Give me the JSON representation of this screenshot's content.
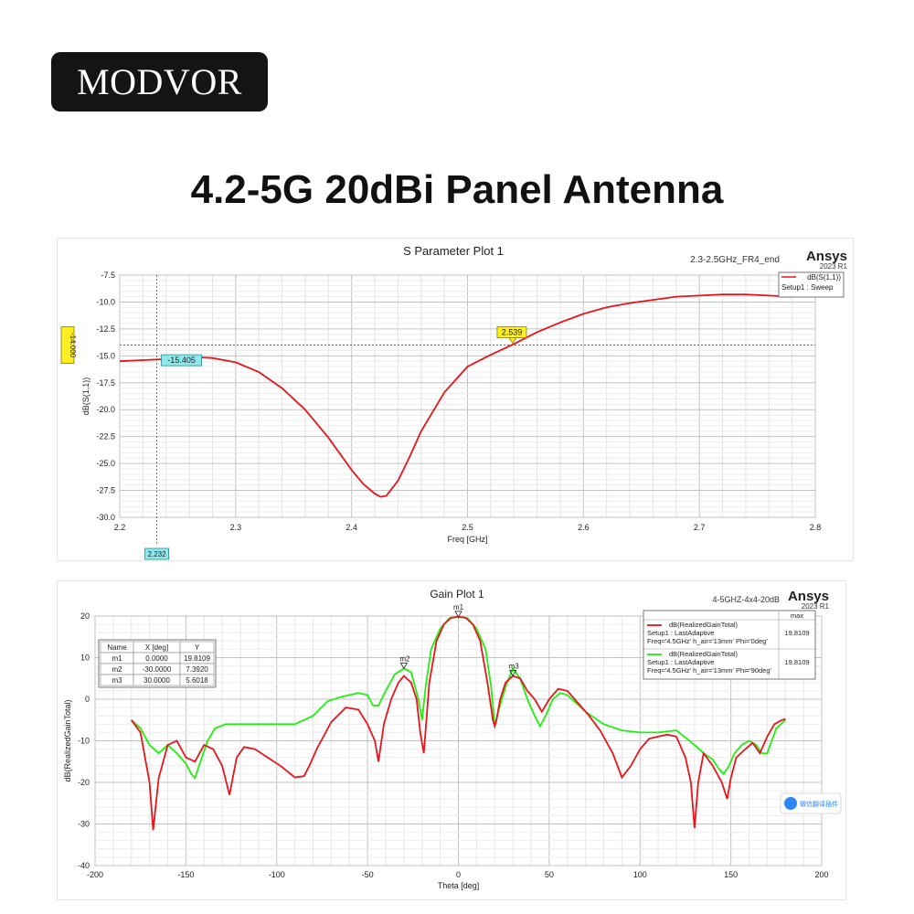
{
  "brand": {
    "logo_text": "MODVOR"
  },
  "page": {
    "title": "4.2-5G 20dBi Panel Antenna"
  },
  "chart_data": [
    {
      "type": "line",
      "title": "S Parameter Plot 1",
      "design_label": "2.3-2.5GHz_FR4_end",
      "vendor": "Ansys",
      "version": "2023 R1",
      "xlabel": "Freq [GHz]",
      "ylabel": "dB(S(1,1))",
      "xlim": [
        2.2,
        2.8
      ],
      "ylim": [
        -30.0,
        -7.5
      ],
      "x_ticks": [
        "2.2",
        "2.3",
        "2.4",
        "2.5",
        "2.6",
        "2.7",
        "2.8"
      ],
      "y_ticks": [
        "-7.5",
        "-10.0",
        "-12.5",
        "-15.0",
        "-17.5",
        "-20.0",
        "-22.5",
        "-25.0",
        "-27.5",
        "-30.0"
      ],
      "grid": true,
      "legend_position": "top-right",
      "series": [
        {
          "name": "dB(S(1,1))",
          "subtitle": "Setup1 : Sweep",
          "color": "#e8141b",
          "x": [
            2.2,
            2.22,
            2.24,
            2.26,
            2.28,
            2.3,
            2.32,
            2.34,
            2.36,
            2.38,
            2.4,
            2.41,
            2.42,
            2.425,
            2.43,
            2.44,
            2.45,
            2.46,
            2.48,
            2.5,
            2.52,
            2.54,
            2.56,
            2.58,
            2.6,
            2.62,
            2.64,
            2.66,
            2.68,
            2.7,
            2.72,
            2.74,
            2.76,
            2.78
          ],
          "y": [
            -15.5,
            -15.4,
            -15.3,
            -15.1,
            -15.2,
            -15.6,
            -16.5,
            -18.0,
            -20.0,
            -22.6,
            -25.6,
            -26.9,
            -27.8,
            -28.1,
            -28.0,
            -26.6,
            -24.4,
            -22.0,
            -18.4,
            -16.0,
            -14.9,
            -13.9,
            -12.8,
            -11.9,
            -11.1,
            -10.5,
            -10.1,
            -9.8,
            -9.5,
            -9.4,
            -9.3,
            -9.3,
            -9.4,
            -9.5
          ]
        }
      ],
      "annotations": {
        "y_level_label": "-14.000",
        "y_level": -14.0,
        "marker_x_label": "2.232",
        "marker_x": 2.232,
        "point_label": "-15.405",
        "point_y": -15.405,
        "crossing_label": "2.539",
        "crossing_x": 2.539
      },
      "colors": {
        "curve": "#e8141b",
        "yellow_tag": "#ffee22",
        "cyan_tag": "#8fe8ec",
        "grid": "#c9c9c9"
      }
    },
    {
      "type": "line",
      "title": "Gain Plot 1",
      "design_label": "4-5GHZ-4x4-20dB",
      "vendor": "Ansys",
      "version": "2023 R1",
      "xlabel": "Theta [deg]",
      "ylabel": "dB(RealizedGainTotal)",
      "xlim": [
        -200,
        200
      ],
      "ylim": [
        -40,
        20
      ],
      "x_ticks": [
        "-200",
        "-150",
        "-100",
        "-50",
        "0",
        "50",
        "100",
        "150",
        "200"
      ],
      "y_ticks": [
        "20",
        "10",
        "0",
        "-10",
        "-20",
        "-30",
        "-40"
      ],
      "grid": true,
      "legend_position": "top-right",
      "legend_header": "max",
      "series": [
        {
          "name": "dB(RealizedGainTotal)",
          "setup": "Setup1 : LastAdaptive",
          "params": "Freq='4.5GHz' h_air='13mm' Phi='0deg'",
          "max": "19.8109",
          "color": "#e8141b",
          "x": [
            -180,
            -175,
            -170,
            -168,
            -165,
            -160,
            -155,
            -150,
            -145,
            -140,
            -135,
            -130,
            -126,
            -122,
            -118,
            -112,
            -105,
            -98,
            -90,
            -85,
            -82,
            -78,
            -70,
            -62,
            -55,
            -50,
            -46,
            -44,
            -41,
            -37,
            -33,
            -30,
            -26,
            -23,
            -21,
            -19,
            -16,
            -12,
            -8,
            -4,
            0,
            4,
            8,
            12,
            16,
            19,
            20,
            21,
            23,
            26,
            30,
            34,
            38,
            42,
            46,
            50,
            55,
            60,
            66,
            72,
            78,
            85,
            90,
            95,
            100,
            105,
            110,
            115,
            120,
            125,
            128,
            130,
            132,
            135,
            140,
            145,
            148,
            150,
            153,
            158,
            162,
            166,
            170,
            174,
            178,
            180
          ],
          "y": [
            -5,
            -8,
            -20,
            -31.5,
            -19,
            -11,
            -10,
            -14,
            -15,
            -11,
            -12,
            -16,
            -23,
            -14,
            -11.5,
            -12,
            -14,
            -16,
            -18.8,
            -18.5,
            -16,
            -12,
            -5.5,
            -2,
            -2.5,
            -6,
            -10,
            -15,
            -6,
            0,
            4,
            5.6,
            4,
            0,
            -8,
            -13,
            4,
            14,
            18,
            19.6,
            19.8,
            19.6,
            18,
            14,
            4,
            -5,
            -6.5,
            -5,
            0,
            4,
            5.6,
            5,
            2,
            0,
            -3,
            0,
            2.5,
            2,
            -1,
            -4,
            -7.5,
            -13,
            -18.8,
            -16,
            -12,
            -9.5,
            -9,
            -8.5,
            -9,
            -14,
            -20,
            -31,
            -20,
            -13,
            -16,
            -20,
            -24,
            -19,
            -14,
            -12,
            -10.5,
            -13,
            -9,
            -6,
            -5,
            -4.8
          ]
        },
        {
          "name": "dB(RealizedGainTotal)",
          "setup": "Setup1 : LastAdaptive",
          "params": "Freq='4.5GHz' h_air='13mm' Phi='90deg'",
          "max": "19.8109",
          "color": "#22ee11",
          "x": [
            -180,
            -175,
            -170,
            -165,
            -160,
            -155,
            -150,
            -147,
            -145,
            -142,
            -138,
            -134,
            -128,
            -120,
            -110,
            -100,
            -90,
            -80,
            -72,
            -65,
            -60,
            -55,
            -50,
            -47,
            -44,
            -40,
            -35,
            -30,
            -26,
            -22,
            -20,
            -18,
            -15,
            -10,
            -5,
            0,
            5,
            10,
            15,
            18,
            20,
            22,
            26,
            30,
            34,
            38,
            42,
            45,
            48,
            52,
            56,
            60,
            70,
            80,
            90,
            100,
            110,
            120,
            130,
            135,
            140,
            143,
            146,
            149,
            152,
            156,
            160,
            164,
            167,
            170,
            175,
            180
          ],
          "y": [
            -5,
            -7,
            -11,
            -13,
            -11,
            -13,
            -15.5,
            -18,
            -19,
            -15,
            -10,
            -7,
            -6,
            -6,
            -6,
            -6,
            -6,
            -4,
            -0.5,
            0.5,
            1,
            1.5,
            1,
            -1.5,
            -1.5,
            2,
            6,
            7.4,
            6.5,
            0,
            -5,
            3,
            12,
            17,
            19.5,
            19.8,
            19.5,
            17,
            12,
            3,
            -6.5,
            -3,
            3,
            7.4,
            5,
            0,
            -4,
            -6.5,
            -4,
            0,
            1.5,
            1,
            -3,
            -6,
            -7.5,
            -8,
            -8,
            -7.5,
            -11,
            -13,
            -14.5,
            -16.5,
            -18,
            -16,
            -13,
            -11,
            -10,
            -11,
            -13,
            -13,
            -7,
            -5
          ]
        }
      ],
      "markers_table": {
        "headers": [
          "Name",
          "X [deg]",
          "Y"
        ],
        "rows": [
          [
            "m1",
            "0.0000",
            "19.8109"
          ],
          [
            "m2",
            "-30.0000",
            "7.3920"
          ],
          [
            "m3",
            "30.0000",
            "5.6018"
          ]
        ]
      },
      "markers": [
        {
          "name": "m1",
          "x": 0,
          "y": 19.8109
        },
        {
          "name": "m2",
          "x": -30,
          "y": 7.392
        },
        {
          "name": "m3",
          "x": 30,
          "y": 5.6018
        }
      ],
      "overlay_badge_text": "微信翻译插件",
      "colors": {
        "red": "#e8141b",
        "green": "#22ee11",
        "grid": "#c9c9c9",
        "badge": "#2f86f6"
      }
    }
  ]
}
